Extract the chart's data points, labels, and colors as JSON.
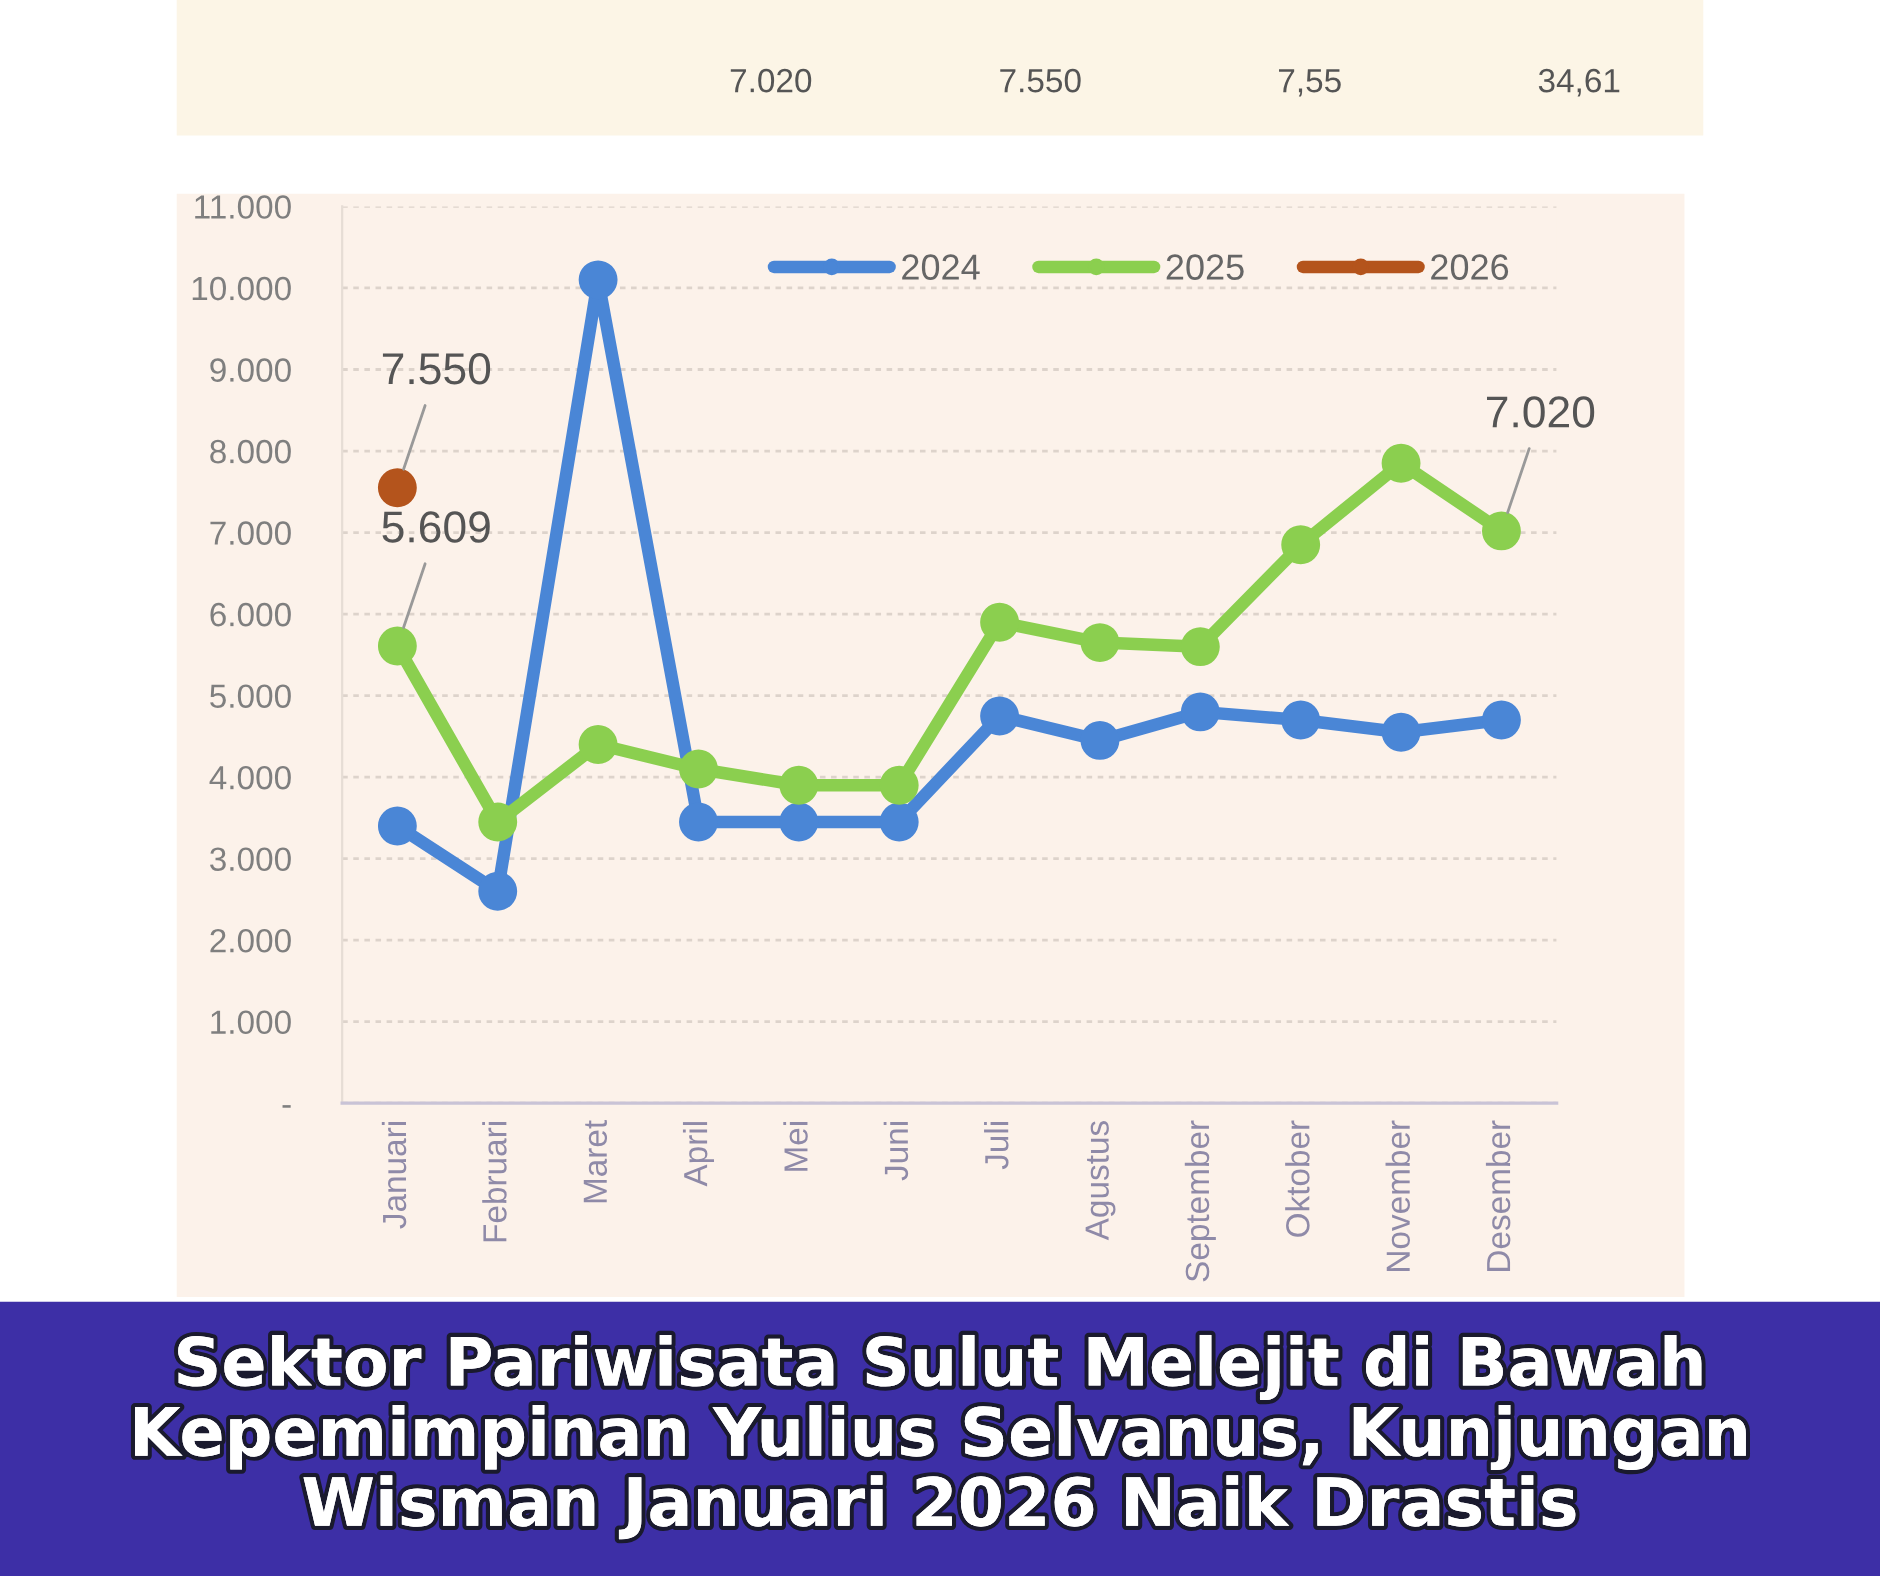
{
  "chart_data": {
    "type": "line",
    "title": "Sektor Pariwisata Sulut Melejit di Bawah Kepemimpinan Yulius Selvanus, Kunjungan Wisman Januari 2026 Naik Drastis",
    "annotations": [
      "7.020",
      "7.550",
      "7,55",
      "34,61"
    ],
    "categories": [
      "Januari",
      "Februari",
      "Maret",
      "April",
      "Mei",
      "Juni",
      "Juli",
      "Agustus",
      "September",
      "Oktober",
      "November",
      "Desember"
    ],
    "series": [
      {
        "name": "2024",
        "color": "#4a86d6",
        "values": [
          3400,
          2600,
          10100,
          3450,
          3450,
          3450,
          4750,
          4450,
          4800,
          4700,
          4550,
          4700
        ]
      },
      {
        "name": "2025",
        "color": "#8bcf4f",
        "values": [
          5609,
          3450,
          4400,
          4100,
          3900,
          3900,
          5900,
          5650,
          5600,
          6850,
          7850,
          7020
        ],
        "value_labels": [
          "5.609",
          null,
          null,
          null,
          null,
          null,
          null,
          null,
          null,
          null,
          null,
          "7.020"
        ]
      },
      {
        "name": "2026",
        "color": "#b4541c",
        "values": [
          7550,
          null,
          null,
          null,
          null,
          null,
          null,
          null,
          null,
          null,
          null,
          null
        ],
        "value_labels": [
          "7.550",
          null,
          null,
          null,
          null,
          null,
          null,
          null,
          null,
          null,
          null,
          null
        ]
      }
    ],
    "ylim": [
      0,
      11000
    ],
    "yticks": [
      {
        "value": 0,
        "label": "-"
      },
      {
        "value": 1000,
        "label": "1.000"
      },
      {
        "value": 2000,
        "label": "2.000"
      },
      {
        "value": 3000,
        "label": "3.000"
      },
      {
        "value": 4000,
        "label": "4.000"
      },
      {
        "value": 5000,
        "label": "5.000"
      },
      {
        "value": 6000,
        "label": "6.000"
      },
      {
        "value": 7000,
        "label": "7.000"
      },
      {
        "value": 8000,
        "label": "8.000"
      },
      {
        "value": 9000,
        "label": "9.000"
      },
      {
        "value": 10000,
        "label": "10.000"
      },
      {
        "value": 11000,
        "label": "11.000"
      }
    ],
    "grid": "y",
    "legend": "top right",
    "marker": "circle",
    "line_style": "solid"
  }
}
